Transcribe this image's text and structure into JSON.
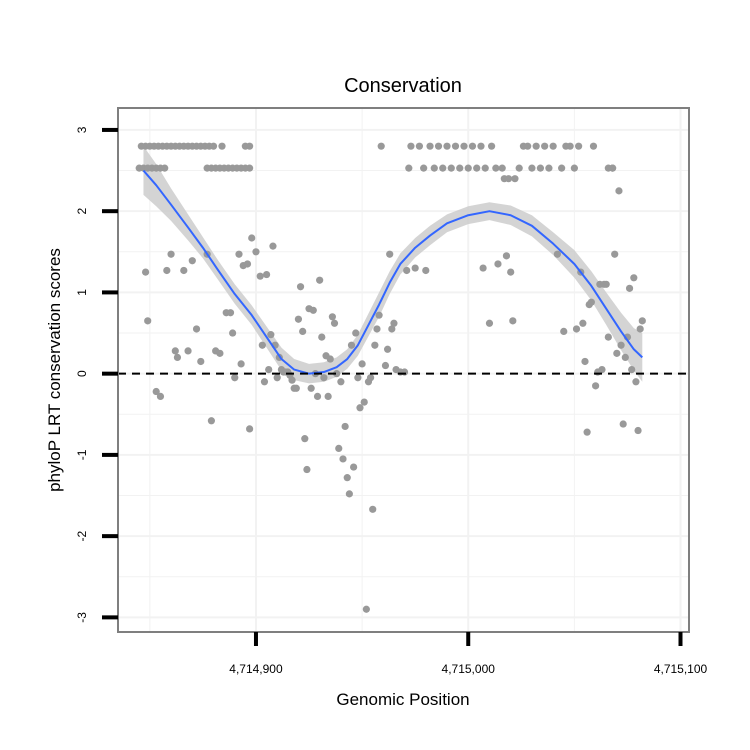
{
  "chart_data": {
    "type": "scatter",
    "title": "Conservation",
    "xlabel": "Genomic Position",
    "ylabel": "phyloP LRT conservation scores",
    "xlim": [
      4714835,
      4715104
    ],
    "ylim": [
      -3.18,
      3.27
    ],
    "xticks": [
      {
        "value": 4714900,
        "label": "4,714,900"
      },
      {
        "value": 4715000,
        "label": "4,715,000"
      },
      {
        "value": 4715100,
        "label": "4,715,100"
      }
    ],
    "yticks": [
      {
        "value": 3,
        "label": "3"
      },
      {
        "value": 2,
        "label": "2"
      },
      {
        "value": 1,
        "label": "1"
      },
      {
        "value": 0,
        "label": "0"
      },
      {
        "value": -1,
        "label": "-1"
      },
      {
        "value": -2,
        "label": "-2"
      },
      {
        "value": -3,
        "label": "-3"
      }
    ],
    "minor_x_gridlines": [
      4714850,
      4714950,
      4715050
    ],
    "minor_y_gridlines": [
      2.5,
      1.5,
      0.5,
      -0.5,
      -1.5,
      -2.5
    ],
    "reference_line": {
      "y": 0,
      "style": "dashed"
    },
    "colors": {
      "points": "#999999",
      "smooth": "#3366ff",
      "ribbon": "#cccccc",
      "panel_border": "#7f7f7f",
      "grid": "#f2f2f2"
    },
    "points": [
      [
        4714846,
        2.8
      ],
      [
        4714848,
        2.8
      ],
      [
        4714850,
        2.8
      ],
      [
        4714852,
        2.8
      ],
      [
        4714854,
        2.8
      ],
      [
        4714856,
        2.8
      ],
      [
        4714858,
        2.8
      ],
      [
        4714860,
        2.8
      ],
      [
        4714862,
        2.8
      ],
      [
        4714864,
        2.8
      ],
      [
        4714866,
        2.8
      ],
      [
        4714868,
        2.8
      ],
      [
        4714870,
        2.8
      ],
      [
        4714872,
        2.8
      ],
      [
        4714874,
        2.8
      ],
      [
        4714876,
        2.8
      ],
      [
        4714878,
        2.8
      ],
      [
        4714880,
        2.8
      ],
      [
        4714884,
        2.8
      ],
      [
        4714895,
        2.8
      ],
      [
        4714897,
        2.8
      ],
      [
        4714845,
        2.53
      ],
      [
        4714847,
        2.53
      ],
      [
        4714849,
        2.53
      ],
      [
        4714851,
        2.53
      ],
      [
        4714853,
        2.53
      ],
      [
        4714855,
        2.53
      ],
      [
        4714857,
        2.53
      ],
      [
        4714877,
        2.53
      ],
      [
        4714879,
        2.53
      ],
      [
        4714881,
        2.53
      ],
      [
        4714883,
        2.53
      ],
      [
        4714885,
        2.53
      ],
      [
        4714887,
        2.53
      ],
      [
        4714889,
        2.53
      ],
      [
        4714891,
        2.53
      ],
      [
        4714893,
        2.53
      ],
      [
        4714895,
        2.53
      ],
      [
        4714897,
        2.53
      ],
      [
        4714848,
        1.25
      ],
      [
        4714849,
        0.65
      ],
      [
        4714853,
        -0.22
      ],
      [
        4714855,
        -0.28
      ],
      [
        4714858,
        1.27
      ],
      [
        4714860,
        1.47
      ],
      [
        4714862,
        0.28
      ],
      [
        4714863,
        0.2
      ],
      [
        4714866,
        1.27
      ],
      [
        4714868,
        0.28
      ],
      [
        4714870,
        1.39
      ],
      [
        4714872,
        0.55
      ],
      [
        4714874,
        0.15
      ],
      [
        4714877,
        1.47
      ],
      [
        4714879,
        -0.58
      ],
      [
        4714881,
        0.28
      ],
      [
        4714883,
        0.25
      ],
      [
        4714886,
        0.75
      ],
      [
        4714888,
        0.75
      ],
      [
        4714889,
        0.5
      ],
      [
        4714890,
        -0.05
      ],
      [
        4714892,
        1.47
      ],
      [
        4714893,
        0.12
      ],
      [
        4714894,
        1.33
      ],
      [
        4714896,
        1.35
      ],
      [
        4714897,
        -0.68
      ],
      [
        4714898,
        1.67
      ],
      [
        4714900,
        1.5
      ],
      [
        4714902,
        1.2
      ],
      [
        4714903,
        0.35
      ],
      [
        4714904,
        -0.1
      ],
      [
        4714905,
        1.22
      ],
      [
        4714906,
        0.05
      ],
      [
        4714907,
        0.48
      ],
      [
        4714908,
        1.57
      ],
      [
        4714909,
        0.35
      ],
      [
        4714910,
        -0.05
      ],
      [
        4714911,
        0.2
      ],
      [
        4714912,
        0.05
      ],
      [
        4714913,
        0.02
      ],
      [
        4714914,
        0.02
      ],
      [
        4714915,
        0.02
      ],
      [
        4714916,
        -0.02
      ],
      [
        4714917,
        -0.08
      ],
      [
        4714918,
        -0.18
      ],
      [
        4714919,
        -0.18
      ],
      [
        4714920,
        0.67
      ],
      [
        4714921,
        1.07
      ],
      [
        4714922,
        0.52
      ],
      [
        4714923,
        -0.8
      ],
      [
        4714924,
        -1.18
      ],
      [
        4714925,
        0.8
      ],
      [
        4714926,
        -0.18
      ],
      [
        4714927,
        0.78
      ],
      [
        4714928,
        0.0
      ],
      [
        4714929,
        -0.28
      ],
      [
        4714930,
        1.15
      ],
      [
        4714931,
        0.45
      ],
      [
        4714932,
        -0.05
      ],
      [
        4714933,
        0.22
      ],
      [
        4714934,
        -0.28
      ],
      [
        4714935,
        0.18
      ],
      [
        4714936,
        0.7
      ],
      [
        4714937,
        0.62
      ],
      [
        4714938,
        0.0
      ],
      [
        4714939,
        -0.92
      ],
      [
        4714940,
        -0.1
      ],
      [
        4714941,
        -1.05
      ],
      [
        4714942,
        -0.65
      ],
      [
        4714943,
        -1.28
      ],
      [
        4714944,
        -1.48
      ],
      [
        4714945,
        0.35
      ],
      [
        4714946,
        -1.15
      ],
      [
        4714947,
        0.5
      ],
      [
        4714948,
        -0.05
      ],
      [
        4714949,
        -0.42
      ],
      [
        4714950,
        0.12
      ],
      [
        4714951,
        -0.35
      ],
      [
        4714952,
        -2.9
      ],
      [
        4714953,
        -0.1
      ],
      [
        4714954,
        -0.05
      ],
      [
        4714955,
        -1.67
      ],
      [
        4714956,
        0.35
      ],
      [
        4714957,
        0.55
      ],
      [
        4714958,
        0.72
      ],
      [
        4714959,
        2.8
      ],
      [
        4714961,
        0.1
      ],
      [
        4714962,
        0.3
      ],
      [
        4714963,
        1.47
      ],
      [
        4714964,
        0.55
      ],
      [
        4714965,
        0.62
      ],
      [
        4714966,
        0.05
      ],
      [
        4714968,
        0.02
      ],
      [
        4714970,
        0.02
      ],
      [
        4714971,
        1.27
      ],
      [
        4714972,
        2.53
      ],
      [
        4714973,
        2.8
      ],
      [
        4714975,
        1.3
      ],
      [
        4714977,
        2.8
      ],
      [
        4714979,
        2.53
      ],
      [
        4714980,
        1.27
      ],
      [
        4714982,
        2.8
      ],
      [
        4714984,
        2.53
      ],
      [
        4714986,
        2.8
      ],
      [
        4714988,
        2.53
      ],
      [
        4714990,
        2.8
      ],
      [
        4714992,
        2.53
      ],
      [
        4714994,
        2.8
      ],
      [
        4714996,
        2.53
      ],
      [
        4714998,
        2.8
      ],
      [
        4715000,
        2.53
      ],
      [
        4715002,
        2.8
      ],
      [
        4715004,
        2.53
      ],
      [
        4715006,
        2.8
      ],
      [
        4715007,
        1.3
      ],
      [
        4715008,
        2.53
      ],
      [
        4715010,
        0.62
      ],
      [
        4715011,
        2.8
      ],
      [
        4715013,
        2.53
      ],
      [
        4715014,
        1.35
      ],
      [
        4715016,
        2.53
      ],
      [
        4715017,
        2.4
      ],
      [
        4715018,
        1.45
      ],
      [
        4715019,
        2.4
      ],
      [
        4715020,
        1.25
      ],
      [
        4715021,
        0.65
      ],
      [
        4715022,
        2.4
      ],
      [
        4715024,
        2.53
      ],
      [
        4715026,
        2.8
      ],
      [
        4715028,
        2.8
      ],
      [
        4715030,
        2.53
      ],
      [
        4715032,
        2.8
      ],
      [
        4715034,
        2.53
      ],
      [
        4715036,
        2.8
      ],
      [
        4715038,
        2.53
      ],
      [
        4715040,
        2.8
      ],
      [
        4715042,
        1.47
      ],
      [
        4715044,
        2.53
      ],
      [
        4715045,
        0.52
      ],
      [
        4715046,
        2.8
      ],
      [
        4715048,
        2.8
      ],
      [
        4715050,
        2.53
      ],
      [
        4715051,
        0.55
      ],
      [
        4715052,
        2.8
      ],
      [
        4715053,
        1.25
      ],
      [
        4715054,
        0.62
      ],
      [
        4715055,
        0.15
      ],
      [
        4715056,
        -0.72
      ],
      [
        4715057,
        0.85
      ],
      [
        4715058,
        0.88
      ],
      [
        4715059,
        2.8
      ],
      [
        4715060,
        -0.15
      ],
      [
        4715061,
        0.02
      ],
      [
        4715062,
        1.1
      ],
      [
        4715063,
        0.05
      ],
      [
        4715064,
        1.1
      ],
      [
        4715065,
        1.1
      ],
      [
        4715066,
        0.45
      ],
      [
        4715068,
        2.53
      ],
      [
        4715069,
        1.47
      ],
      [
        4715070,
        0.25
      ],
      [
        4715071,
        2.25
      ],
      [
        4715072,
        0.35
      ],
      [
        4715073,
        -0.62
      ],
      [
        4715074,
        0.2
      ],
      [
        4715075,
        0.45
      ],
      [
        4715076,
        1.05
      ],
      [
        4715077,
        0.05
      ],
      [
        4715078,
        1.18
      ],
      [
        4715079,
        -0.1
      ],
      [
        4715080,
        -0.7
      ],
      [
        4715081,
        0.55
      ],
      [
        4715082,
        0.65
      ],
      [
        4715068,
        2.53
      ],
      [
        4715066,
        2.53
      ]
    ],
    "smooth": [
      [
        4714847,
        2.5
      ],
      [
        4714853,
        2.32
      ],
      [
        4714860,
        2.08
      ],
      [
        4714868,
        1.8
      ],
      [
        4714875,
        1.55
      ],
      [
        4714882,
        1.28
      ],
      [
        4714890,
        0.98
      ],
      [
        4714898,
        0.72
      ],
      [
        4714905,
        0.45
      ],
      [
        4714912,
        0.18
      ],
      [
        4714918,
        0.05
      ],
      [
        4714925,
        0.0
      ],
      [
        4714932,
        0.02
      ],
      [
        4714938,
        0.08
      ],
      [
        4714943,
        0.18
      ],
      [
        4714948,
        0.35
      ],
      [
        4714953,
        0.6
      ],
      [
        4714958,
        0.85
      ],
      [
        4714963,
        1.12
      ],
      [
        4714968,
        1.35
      ],
      [
        4714975,
        1.55
      ],
      [
        4714982,
        1.7
      ],
      [
        4714990,
        1.85
      ],
      [
        4715000,
        1.95
      ],
      [
        4715010,
        2.0
      ],
      [
        4715020,
        1.95
      ],
      [
        4715030,
        1.82
      ],
      [
        4715040,
        1.6
      ],
      [
        4715050,
        1.35
      ],
      [
        4715058,
        1.08
      ],
      [
        4715065,
        0.8
      ],
      [
        4715072,
        0.52
      ],
      [
        4715078,
        0.3
      ],
      [
        4715082,
        0.2
      ]
    ],
    "ribbon_upper": [
      [
        4714847,
        2.8
      ],
      [
        4714853,
        2.58
      ],
      [
        4714860,
        2.28
      ],
      [
        4714868,
        1.96
      ],
      [
        4714875,
        1.68
      ],
      [
        4714882,
        1.4
      ],
      [
        4714890,
        1.1
      ],
      [
        4714898,
        0.84
      ],
      [
        4714905,
        0.58
      ],
      [
        4714912,
        0.32
      ],
      [
        4714918,
        0.18
      ],
      [
        4714925,
        0.12
      ],
      [
        4714932,
        0.14
      ],
      [
        4714938,
        0.2
      ],
      [
        4714943,
        0.3
      ],
      [
        4714948,
        0.48
      ],
      [
        4714953,
        0.74
      ],
      [
        4714958,
        1.0
      ],
      [
        4714963,
        1.26
      ],
      [
        4714968,
        1.48
      ],
      [
        4714975,
        1.67
      ],
      [
        4714982,
        1.82
      ],
      [
        4714990,
        1.96
      ],
      [
        4715000,
        2.06
      ],
      [
        4715010,
        2.11
      ],
      [
        4715020,
        2.07
      ],
      [
        4715030,
        1.95
      ],
      [
        4715040,
        1.74
      ],
      [
        4715050,
        1.52
      ],
      [
        4715058,
        1.26
      ],
      [
        4715065,
        1.0
      ],
      [
        4715072,
        0.75
      ],
      [
        4715078,
        0.56
      ],
      [
        4715082,
        0.5
      ]
    ],
    "ribbon_lower": [
      [
        4714847,
        2.2
      ],
      [
        4714853,
        2.06
      ],
      [
        4714860,
        1.88
      ],
      [
        4714868,
        1.64
      ],
      [
        4714875,
        1.42
      ],
      [
        4714882,
        1.16
      ],
      [
        4714890,
        0.86
      ],
      [
        4714898,
        0.6
      ],
      [
        4714905,
        0.32
      ],
      [
        4714912,
        0.04
      ],
      [
        4714918,
        -0.08
      ],
      [
        4714925,
        -0.12
      ],
      [
        4714932,
        -0.1
      ],
      [
        4714938,
        -0.04
      ],
      [
        4714943,
        0.06
      ],
      [
        4714948,
        0.22
      ],
      [
        4714953,
        0.46
      ],
      [
        4714958,
        0.7
      ],
      [
        4714963,
        0.98
      ],
      [
        4714968,
        1.22
      ],
      [
        4714975,
        1.43
      ],
      [
        4714982,
        1.58
      ],
      [
        4714990,
        1.74
      ],
      [
        4715000,
        1.84
      ],
      [
        4715010,
        1.89
      ],
      [
        4715020,
        1.83
      ],
      [
        4715030,
        1.69
      ],
      [
        4715040,
        1.46
      ],
      [
        4715050,
        1.18
      ],
      [
        4715058,
        0.9
      ],
      [
        4715065,
        0.6
      ],
      [
        4715072,
        0.29
      ],
      [
        4715078,
        0.04
      ],
      [
        4715082,
        -0.1
      ]
    ]
  }
}
